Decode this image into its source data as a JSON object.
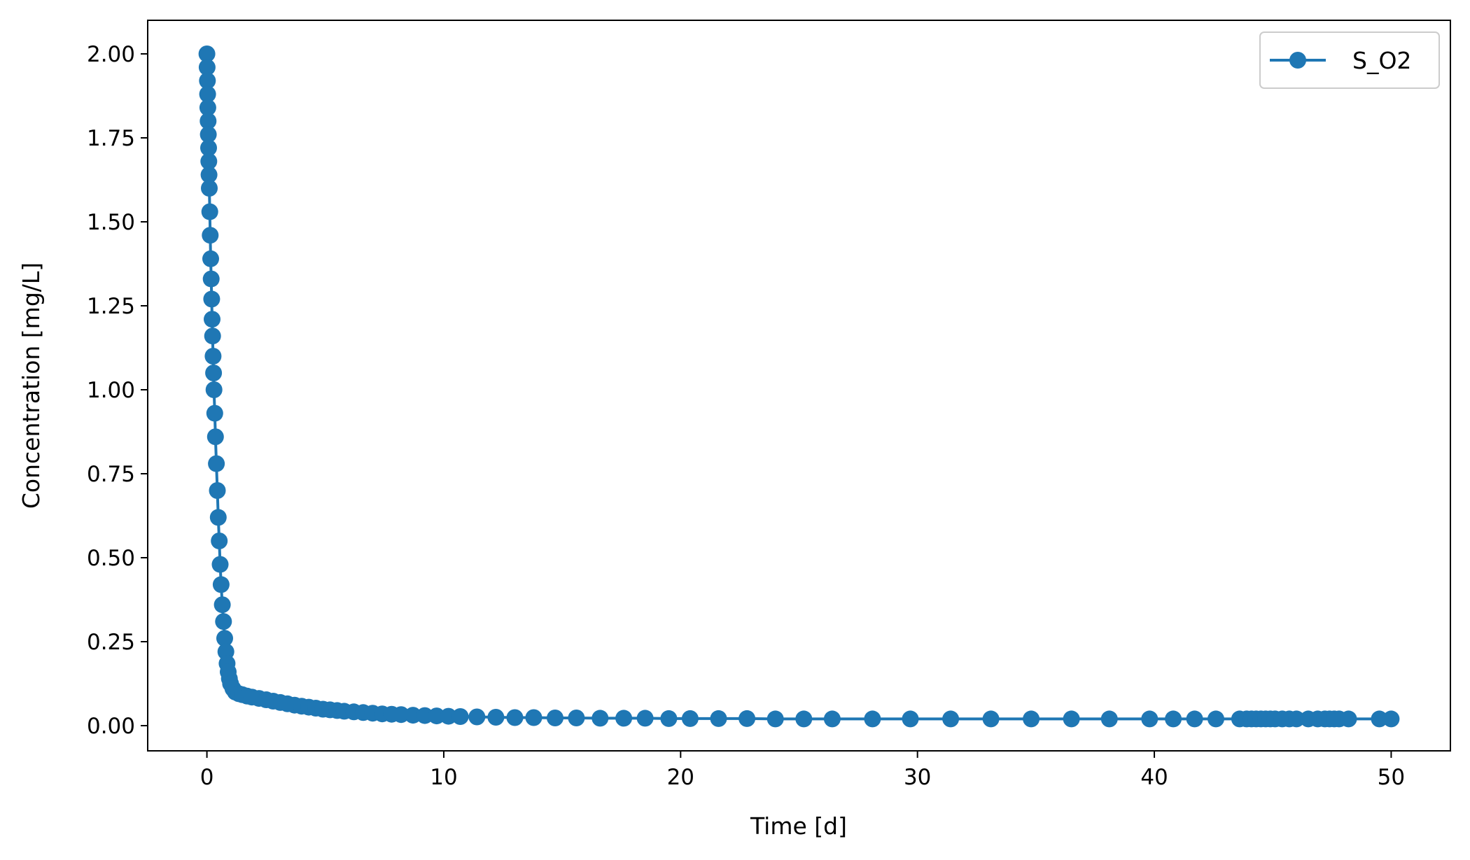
{
  "chart_data": {
    "type": "line",
    "title": "",
    "xlabel": "Time [d]",
    "ylabel": "Concentration [mg/L]",
    "xlim": [
      -2.5,
      52.5
    ],
    "ylim": [
      -0.075,
      2.1
    ],
    "xticks": [
      0,
      10,
      20,
      30,
      40,
      50
    ],
    "xtick_labels": [
      "0",
      "10",
      "20",
      "30",
      "40",
      "50"
    ],
    "yticks": [
      0.0,
      0.25,
      0.5,
      0.75,
      1.0,
      1.25,
      1.5,
      1.75,
      2.0
    ],
    "ytick_labels": [
      "0.00",
      "0.25",
      "0.50",
      "0.75",
      "1.00",
      "1.25",
      "1.50",
      "1.75",
      "2.00"
    ],
    "grid": false,
    "legend_position": "top-right",
    "colors": {
      "series": "#1f77b4",
      "frame": "#000000",
      "legend_border": "#cccccc"
    },
    "series": [
      {
        "name": "S_O2",
        "marker": "circle",
        "x": [
          0,
          0.01,
          0.02,
          0.03,
          0.04,
          0.05,
          0.06,
          0.07,
          0.08,
          0.09,
          0.1,
          0.12,
          0.14,
          0.16,
          0.18,
          0.2,
          0.22,
          0.24,
          0.26,
          0.28,
          0.3,
          0.33,
          0.36,
          0.4,
          0.44,
          0.48,
          0.52,
          0.56,
          0.6,
          0.65,
          0.7,
          0.75,
          0.8,
          0.85,
          0.9,
          0.95,
          1.0,
          1.1,
          1.2,
          1.35,
          1.5,
          1.7,
          1.9,
          2.2,
          2.5,
          2.8,
          3.1,
          3.4,
          3.7,
          4.0,
          4.3,
          4.6,
          4.9,
          5.2,
          5.5,
          5.8,
          6.2,
          6.6,
          7.0,
          7.4,
          7.8,
          8.2,
          8.7,
          9.2,
          9.7,
          10.2,
          10.7,
          11.4,
          12.2,
          13.0,
          13.8,
          14.7,
          15.6,
          16.6,
          17.6,
          18.5,
          19.5,
          20.4,
          21.6,
          22.8,
          24.0,
          25.2,
          26.4,
          28.1,
          29.7,
          31.4,
          33.1,
          34.8,
          36.5,
          38.1,
          39.8,
          40.8,
          41.7,
          42.6,
          43.6,
          43.9,
          44.1,
          44.3,
          44.5,
          44.7,
          44.9,
          45.1,
          45.4,
          45.7,
          46.0,
          46.5,
          46.9,
          47.2,
          47.4,
          47.6,
          47.8,
          48.2,
          49.5,
          50.0
        ],
        "y": [
          2.0,
          1.96,
          1.92,
          1.88,
          1.84,
          1.8,
          1.76,
          1.72,
          1.68,
          1.64,
          1.6,
          1.53,
          1.46,
          1.39,
          1.33,
          1.27,
          1.21,
          1.16,
          1.1,
          1.05,
          1.0,
          0.93,
          0.86,
          0.78,
          0.7,
          0.62,
          0.55,
          0.48,
          0.42,
          0.36,
          0.31,
          0.26,
          0.22,
          0.185,
          0.16,
          0.14,
          0.125,
          0.11,
          0.1,
          0.095,
          0.092,
          0.088,
          0.085,
          0.081,
          0.077,
          0.073,
          0.069,
          0.065,
          0.061,
          0.058,
          0.055,
          0.052,
          0.049,
          0.047,
          0.045,
          0.043,
          0.041,
          0.039,
          0.037,
          0.035,
          0.034,
          0.033,
          0.031,
          0.03,
          0.029,
          0.028,
          0.027,
          0.026,
          0.025,
          0.024,
          0.024,
          0.023,
          0.023,
          0.022,
          0.022,
          0.022,
          0.021,
          0.021,
          0.021,
          0.021,
          0.02,
          0.02,
          0.02,
          0.02,
          0.02,
          0.02,
          0.02,
          0.02,
          0.02,
          0.02,
          0.02,
          0.02,
          0.02,
          0.02,
          0.02,
          0.02,
          0.02,
          0.02,
          0.02,
          0.02,
          0.02,
          0.02,
          0.02,
          0.02,
          0.02,
          0.02,
          0.02,
          0.02,
          0.02,
          0.02,
          0.02,
          0.02,
          0.02,
          0.02
        ]
      }
    ]
  }
}
